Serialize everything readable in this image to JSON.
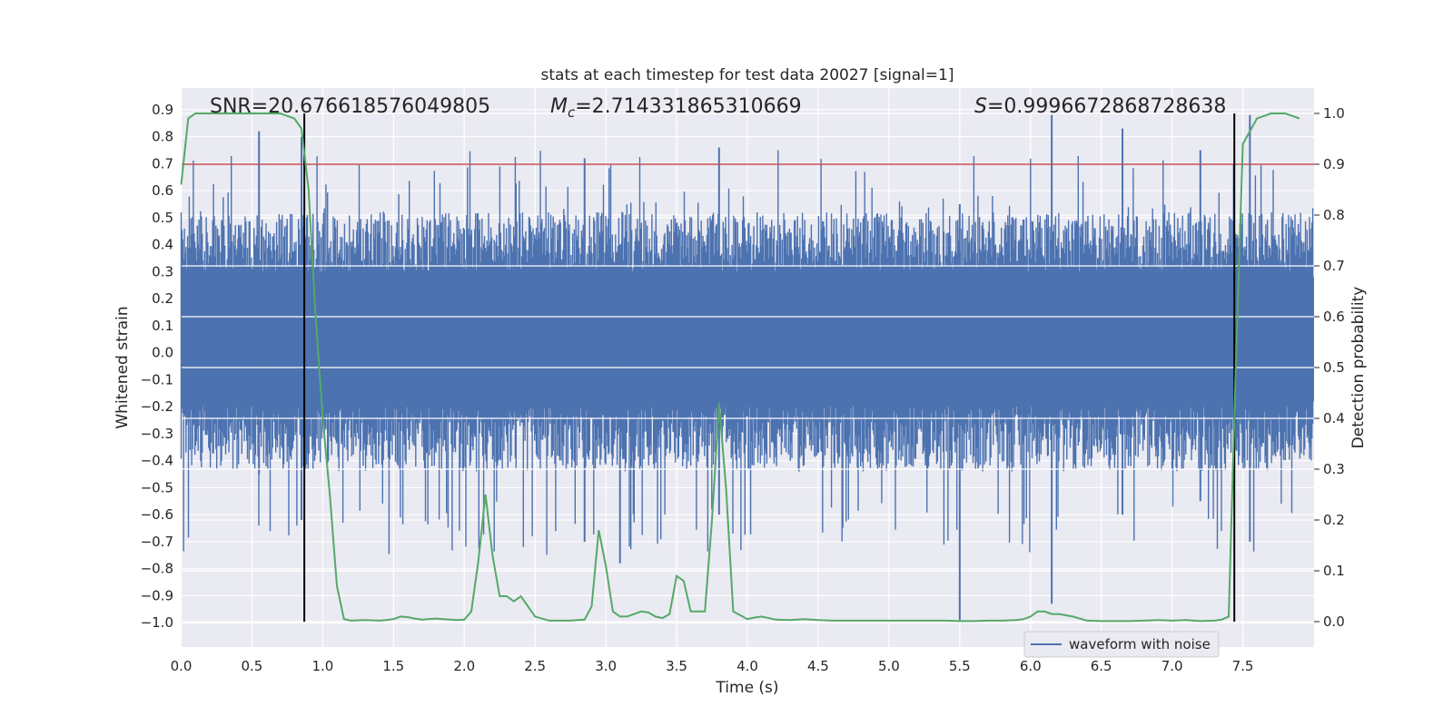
{
  "chart_data": {
    "type": "line",
    "title": "stats at each timestep for test data 20027 [signal=1]",
    "xlabel": "Time (s)",
    "ylabel_left": "Whitened strain",
    "ylabel_right": "Detection probability",
    "xlim": [
      0,
      8
    ],
    "ylim_left": [
      -1.09,
      0.98
    ],
    "ylim_right": [
      -0.05,
      1.05
    ],
    "xticks": [
      "0.0",
      "0.5",
      "1.0",
      "1.5",
      "2.0",
      "2.5",
      "3.0",
      "3.5",
      "4.0",
      "4.5",
      "5.0",
      "5.5",
      "6.0",
      "6.5",
      "7.0",
      "7.5"
    ],
    "yticks_left": [
      "0.9",
      "0.8",
      "0.7",
      "0.6",
      "0.5",
      "0.4",
      "0.3",
      "0.2",
      "0.1",
      "0.0",
      "−0.1",
      "−0.2",
      "−0.3",
      "−0.4",
      "−0.5",
      "−0.6",
      "−0.7",
      "−0.8",
      "−0.9",
      "−1.0"
    ],
    "yticks_right": [
      "1.0",
      "0.9",
      "0.8",
      "0.7",
      "0.6",
      "0.5",
      "0.4",
      "0.3",
      "0.2",
      "0.1",
      "0.0"
    ],
    "threshold": 0.9,
    "boundary_lines_x": [
      0.87,
      7.44
    ],
    "grid": true,
    "legend": {
      "entries": [
        "waveform with noise"
      ],
      "position": "lower right"
    },
    "annotations": {
      "snr": "SNR=20.676618576049805",
      "mc_label": "M",
      "mc_sub": "c",
      "mc_value": "=2.714331865310669",
      "s_label": "S",
      "s_value": "=0.9996672868728638"
    },
    "series": [
      {
        "name": "waveform with noise",
        "style": "dense noise trace",
        "amplitude_core": [
          -0.2,
          0.3
        ],
        "amplitude_extremes": [
          -1.0,
          0.9
        ],
        "color": "#4c72b0"
      },
      {
        "style": "line",
        "color": "#55a868",
        "x": [
          0.0,
          0.05,
          0.1,
          0.2,
          0.3,
          0.4,
          0.5,
          0.6,
          0.7,
          0.8,
          0.85,
          0.9,
          0.95,
          1.0,
          1.05,
          1.1,
          1.15,
          1.2,
          1.3,
          1.4,
          1.45,
          1.5,
          1.55,
          1.6,
          1.65,
          1.7,
          1.8,
          1.85,
          1.9,
          1.95,
          2.0,
          2.05,
          2.1,
          2.15,
          2.2,
          2.25,
          2.3,
          2.35,
          2.4,
          2.5,
          2.6,
          2.7,
          2.75,
          2.8,
          2.85,
          2.9,
          2.95,
          3.0,
          3.05,
          3.1,
          3.15,
          3.2,
          3.25,
          3.3,
          3.35,
          3.4,
          3.45,
          3.5,
          3.55,
          3.6,
          3.65,
          3.7,
          3.75,
          3.8,
          3.85,
          3.9,
          4.0,
          4.05,
          4.1,
          4.2,
          4.3,
          4.4,
          4.5,
          4.6,
          4.7,
          4.8,
          4.9,
          5.0,
          5.1,
          5.2,
          5.3,
          5.4,
          5.5,
          5.6,
          5.7,
          5.8,
          5.9,
          5.95,
          6.0,
          6.05,
          6.1,
          6.15,
          6.2,
          6.3,
          6.4,
          6.5,
          6.6,
          6.7,
          6.8,
          6.9,
          7.0,
          7.1,
          7.2,
          7.3,
          7.35,
          7.4,
          7.45,
          7.5,
          7.6,
          7.7,
          7.8,
          7.9
        ],
        "y": [
          0.86,
          0.99,
          1.0,
          1.0,
          1.0,
          1.0,
          1.0,
          1.0,
          1.0,
          0.99,
          0.97,
          0.85,
          0.6,
          0.4,
          0.25,
          0.07,
          0.005,
          0.002,
          0.003,
          0.002,
          0.003,
          0.005,
          0.01,
          0.009,
          0.006,
          0.004,
          0.006,
          0.005,
          0.004,
          0.003,
          0.004,
          0.02,
          0.12,
          0.25,
          0.13,
          0.05,
          0.05,
          0.04,
          0.05,
          0.01,
          0.002,
          0.002,
          0.002,
          0.003,
          0.004,
          0.03,
          0.18,
          0.11,
          0.02,
          0.01,
          0.01,
          0.015,
          0.02,
          0.018,
          0.01,
          0.007,
          0.015,
          0.09,
          0.08,
          0.02,
          0.02,
          0.02,
          0.2,
          0.43,
          0.26,
          0.02,
          0.005,
          0.008,
          0.01,
          0.004,
          0.003,
          0.005,
          0.003,
          0.002,
          0.002,
          0.002,
          0.002,
          0.002,
          0.002,
          0.002,
          0.002,
          0.002,
          0.001,
          0.001,
          0.002,
          0.002,
          0.003,
          0.005,
          0.01,
          0.02,
          0.02,
          0.015,
          0.015,
          0.01,
          0.002,
          0.001,
          0.001,
          0.001,
          0.002,
          0.003,
          0.002,
          0.003,
          0.001,
          0.002,
          0.004,
          0.01,
          0.5,
          0.94,
          0.99,
          1.0,
          1.0,
          0.99
        ]
      }
    ]
  }
}
